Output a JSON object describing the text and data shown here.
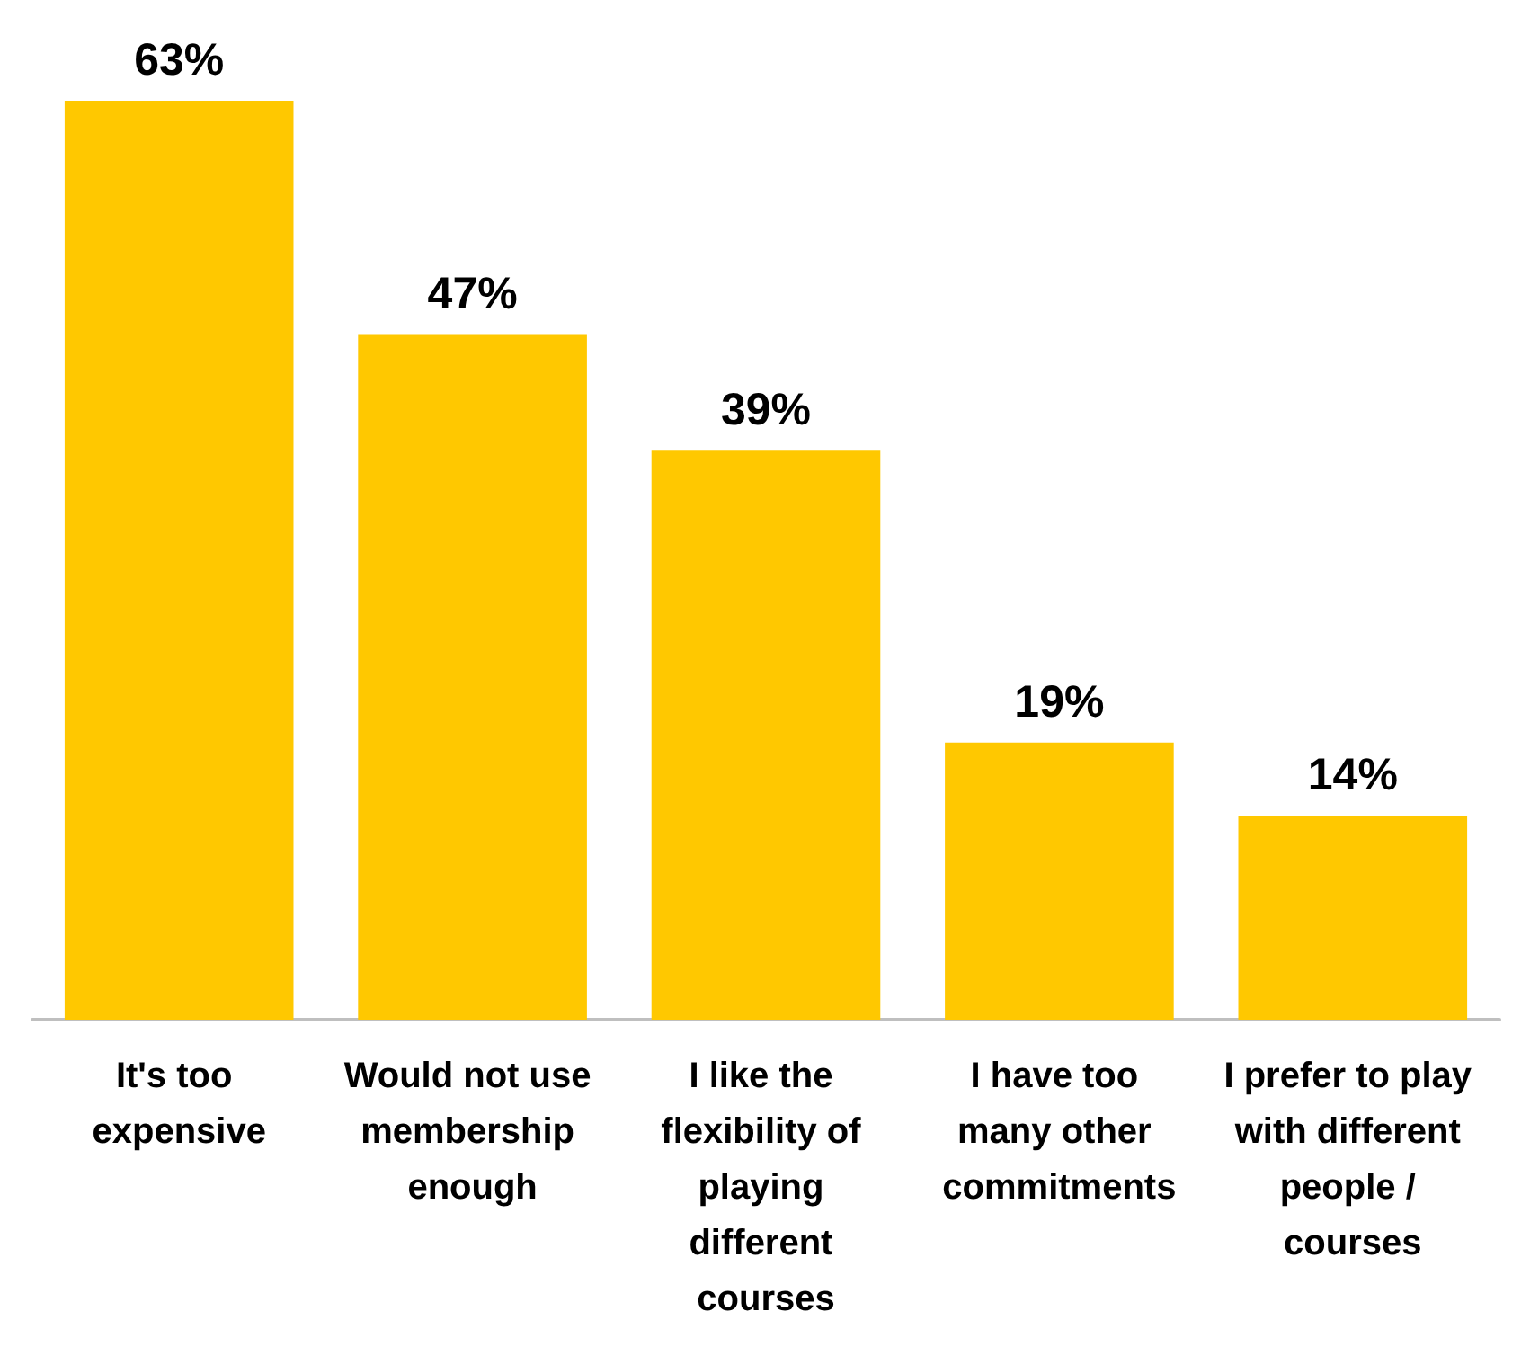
{
  "chart_data": {
    "type": "bar",
    "categories": [
      "It's too expensive",
      "Would not use membership enough",
      "I like the flexibility of playing different courses",
      "I have too many other commitments",
      "I prefer to play with different people / courses"
    ],
    "values": [
      63,
      47,
      39,
      19,
      14
    ],
    "color": "#ffc800",
    "value_labels": [
      "63%",
      "47%",
      "39%",
      "19%",
      "14%"
    ]
  }
}
